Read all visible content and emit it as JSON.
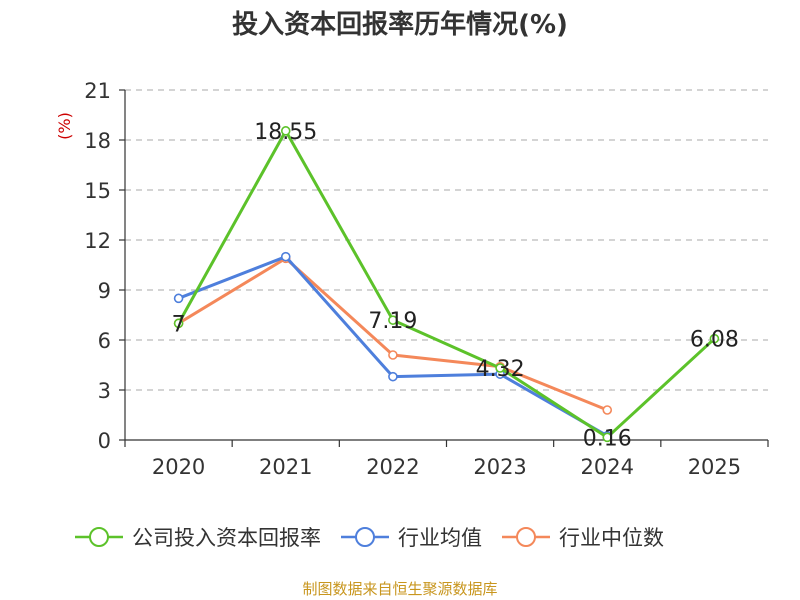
{
  "chart_data": {
    "type": "line",
    "title": "投入资本回报率历年情况(%)",
    "ylabel": "(%)",
    "xlabel": "",
    "categories": [
      "2020",
      "2021",
      "2022",
      "2023",
      "2024",
      "2025"
    ],
    "ylim": [
      0,
      21
    ],
    "yticks": [
      0,
      3,
      6,
      9,
      12,
      15,
      18,
      21
    ],
    "grid": true,
    "legend_position": "bottom",
    "series": [
      {
        "name": "公司投入资本回报率",
        "color": "#5cc22a",
        "values": [
          7,
          18.55,
          7.19,
          4.32,
          0.16,
          6.08
        ],
        "data_labels": [
          "7",
          "18.55",
          "7.19",
          "4.32",
          "0.16",
          "6.08"
        ]
      },
      {
        "name": "行业均值",
        "color": "#4e7fdc",
        "values": [
          8.5,
          11.0,
          3.8,
          3.95,
          0.25,
          null
        ]
      },
      {
        "name": "行业中位数",
        "color": "#f4885a",
        "values": [
          7.0,
          10.9,
          5.1,
          4.4,
          1.8,
          null
        ]
      }
    ]
  },
  "footer": {
    "source": "制图数据来自恒生聚源数据库",
    "source_color": "#c8961e"
  }
}
